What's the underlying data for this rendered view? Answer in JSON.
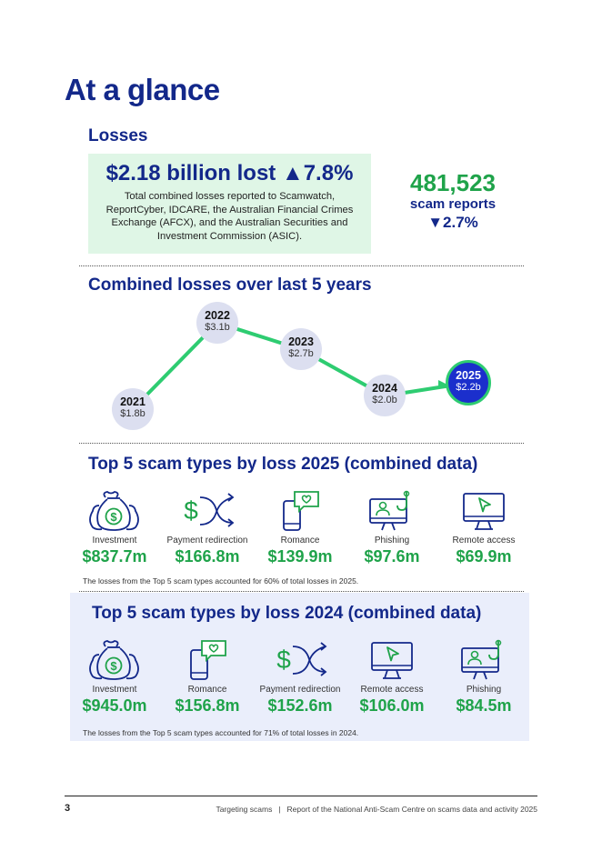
{
  "page_title": "At a glance",
  "losses": {
    "heading": "Losses",
    "headline_amount": "$2.18 billion lost",
    "headline_change": "▲7.8%",
    "description": "Total combined losses reported to Scamwatch, ReportCyber, IDCARE, the Australian Financial Crimes Exchange (AFCX), and the Australian Securities and Investment Commission (ASIC).",
    "reports_count": "481,523",
    "reports_label": "scam reports",
    "reports_change": "▼2.7%"
  },
  "trend": {
    "heading": "Combined losses over last 5 years",
    "points": [
      {
        "year": "2021",
        "label": "$1.8b"
      },
      {
        "year": "2022",
        "label": "$3.1b"
      },
      {
        "year": "2023",
        "label": "$2.7b"
      },
      {
        "year": "2024",
        "label": "$2.0b"
      },
      {
        "year": "2025",
        "label": "$2.2b"
      }
    ]
  },
  "chart_data": {
    "type": "line",
    "title": "Combined losses over last 5 years",
    "x": [
      "2021",
      "2022",
      "2023",
      "2024",
      "2025"
    ],
    "values": [
      1.8,
      3.1,
      2.7,
      2.0,
      2.2
    ],
    "unit": "$ billion",
    "xlabel": "",
    "ylabel": "",
    "highlight": "2025"
  },
  "top2025": {
    "heading": "Top 5 scam types by loss 2025 (combined data)",
    "items": [
      {
        "name": "Investment",
        "amount": "$837.7m",
        "icon": "money-bags-icon"
      },
      {
        "name": "Payment redirection",
        "amount": "$166.8m",
        "icon": "redirect-arrows-icon"
      },
      {
        "name": "Romance",
        "amount": "$139.9m",
        "icon": "phone-heart-icon"
      },
      {
        "name": "Phishing",
        "amount": "$97.6m",
        "icon": "monitor-hook-icon"
      },
      {
        "name": "Remote access",
        "amount": "$69.9m",
        "icon": "monitor-cursor-icon"
      }
    ],
    "note": "The losses from the Top 5 scam types accounted for 60% of total losses in 2025."
  },
  "top2024": {
    "heading": "Top 5 scam types by loss 2024 (combined data)",
    "items": [
      {
        "name": "Investment",
        "amount": "$945.0m",
        "icon": "money-bags-icon"
      },
      {
        "name": "Romance",
        "amount": "$156.8m",
        "icon": "phone-heart-icon"
      },
      {
        "name": "Payment redirection",
        "amount": "$152.6m",
        "icon": "redirect-arrows-icon"
      },
      {
        "name": "Remote access",
        "amount": "$106.0m",
        "icon": "monitor-cursor-icon"
      },
      {
        "name": "Phishing",
        "amount": "$84.5m",
        "icon": "monitor-hook-icon"
      }
    ],
    "note": "The losses from the Top 5 scam types accounted for 71% of total losses in 2024."
  },
  "footer": {
    "page_number": "3",
    "left": "Targeting scams",
    "separator": "|",
    "right": "Report of the National Anti-Scam Centre on scams data and activity 2025"
  },
  "colors": {
    "navy": "#13288a",
    "green": "#1fa34a",
    "light_green": "#dff6e6",
    "light_blue": "#eaeefb",
    "highlight": "#1b2fcc"
  }
}
